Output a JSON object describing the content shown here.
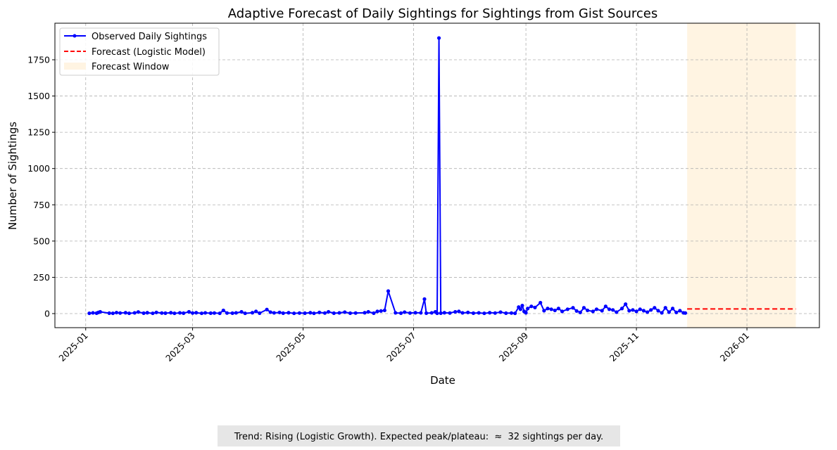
{
  "chart_data": {
    "type": "line",
    "title": "Adaptive Forecast of Daily Sightings for Sightings from Gist Sources",
    "xlabel": "Date",
    "ylabel": "Number of Sightings",
    "xlim": [
      "2024-12-15",
      "2026-02-10"
    ],
    "ylim": [
      -97,
      2002
    ],
    "xticks": [
      "2025-01",
      "2025-03",
      "2025-05",
      "2025-07",
      "2025-09",
      "2025-11",
      "2026-01"
    ],
    "yticks": [
      0,
      250,
      500,
      750,
      1000,
      1250,
      1500,
      1750
    ],
    "grid": true,
    "legend_position": "top-left",
    "legend": [
      "Observed Daily Sightings",
      "Forecast (Logistic Model)",
      "Forecast Window"
    ],
    "colors": {
      "observed": "#0000ff",
      "forecast": "#ff0000",
      "window": "#fff4e2"
    },
    "forecast_window": [
      "2025-11-29",
      "2026-01-28"
    ],
    "forecast": {
      "start": "2025-11-29",
      "end": "2026-01-28",
      "value": 32
    },
    "observed": [
      [
        "2025-01-03",
        2
      ],
      [
        "2025-01-05",
        5
      ],
      [
        "2025-01-07",
        3
      ],
      [
        "2025-01-08",
        8
      ],
      [
        "2025-01-09",
        12
      ],
      [
        "2025-01-14",
        3
      ],
      [
        "2025-01-16",
        2
      ],
      [
        "2025-01-18",
        7
      ],
      [
        "2025-01-20",
        4
      ],
      [
        "2025-01-23",
        6
      ],
      [
        "2025-01-25",
        2
      ],
      [
        "2025-01-28",
        5
      ],
      [
        "2025-01-30",
        11
      ],
      [
        "2025-02-02",
        3
      ],
      [
        "2025-02-04",
        6
      ],
      [
        "2025-02-07",
        2
      ],
      [
        "2025-02-09",
        8
      ],
      [
        "2025-02-12",
        4
      ],
      [
        "2025-02-14",
        3
      ],
      [
        "2025-02-17",
        6
      ],
      [
        "2025-02-19",
        2
      ],
      [
        "2025-02-22",
        5
      ],
      [
        "2025-02-24",
        3
      ],
      [
        "2025-02-27",
        12
      ],
      [
        "2025-03-01",
        4
      ],
      [
        "2025-03-03",
        6
      ],
      [
        "2025-03-06",
        2
      ],
      [
        "2025-03-08",
        5
      ],
      [
        "2025-03-11",
        3
      ],
      [
        "2025-03-13",
        4
      ],
      [
        "2025-03-16",
        2
      ],
      [
        "2025-03-18",
        22
      ],
      [
        "2025-03-20",
        4
      ],
      [
        "2025-03-23",
        3
      ],
      [
        "2025-03-25",
        5
      ],
      [
        "2025-03-28",
        12
      ],
      [
        "2025-03-30",
        2
      ],
      [
        "2025-04-03",
        6
      ],
      [
        "2025-04-05",
        15
      ],
      [
        "2025-04-07",
        3
      ],
      [
        "2025-04-11",
        28
      ],
      [
        "2025-04-13",
        10
      ],
      [
        "2025-04-15",
        5
      ],
      [
        "2025-04-18",
        8
      ],
      [
        "2025-04-20",
        3
      ],
      [
        "2025-04-23",
        6
      ],
      [
        "2025-04-26",
        2
      ],
      [
        "2025-04-29",
        4
      ],
      [
        "2025-05-02",
        3
      ],
      [
        "2025-05-05",
        6
      ],
      [
        "2025-05-07",
        2
      ],
      [
        "2025-05-10",
        8
      ],
      [
        "2025-05-13",
        4
      ],
      [
        "2025-05-15",
        12
      ],
      [
        "2025-05-18",
        3
      ],
      [
        "2025-05-21",
        5
      ],
      [
        "2025-05-24",
        10
      ],
      [
        "2025-05-27",
        3
      ],
      [
        "2025-05-30",
        4
      ],
      [
        "2025-06-04",
        6
      ],
      [
        "2025-06-06",
        12
      ],
      [
        "2025-06-09",
        3
      ],
      [
        "2025-06-11",
        15
      ],
      [
        "2025-06-13",
        18
      ],
      [
        "2025-06-15",
        22
      ],
      [
        "2025-06-17",
        155
      ],
      [
        "2025-06-21",
        5
      ],
      [
        "2025-06-24",
        3
      ],
      [
        "2025-06-26",
        10
      ],
      [
        "2025-06-29",
        4
      ],
      [
        "2025-07-02",
        6
      ],
      [
        "2025-07-05",
        5
      ],
      [
        "2025-07-07",
        100
      ],
      [
        "2025-07-08",
        3
      ],
      [
        "2025-07-11",
        5
      ],
      [
        "2025-07-13",
        12
      ],
      [
        "2025-07-14",
        2
      ],
      [
        "2025-07-15",
        1900
      ],
      [
        "2025-07-16",
        3
      ],
      [
        "2025-07-18",
        6
      ],
      [
        "2025-07-21",
        4
      ],
      [
        "2025-07-24",
        12
      ],
      [
        "2025-07-26",
        15
      ],
      [
        "2025-07-28",
        5
      ],
      [
        "2025-07-31",
        8
      ],
      [
        "2025-08-03",
        3
      ],
      [
        "2025-08-06",
        5
      ],
      [
        "2025-08-09",
        2
      ],
      [
        "2025-08-12",
        6
      ],
      [
        "2025-08-15",
        4
      ],
      [
        "2025-08-18",
        10
      ],
      [
        "2025-08-21",
        3
      ],
      [
        "2025-08-24",
        4
      ],
      [
        "2025-08-26",
        2
      ],
      [
        "2025-08-28",
        45
      ],
      [
        "2025-08-29",
        30
      ],
      [
        "2025-08-30",
        55
      ],
      [
        "2025-08-31",
        15
      ],
      [
        "2025-09-01",
        5
      ],
      [
        "2025-09-02",
        35
      ],
      [
        "2025-09-04",
        50
      ],
      [
        "2025-09-06",
        42
      ],
      [
        "2025-09-09",
        75
      ],
      [
        "2025-09-11",
        20
      ],
      [
        "2025-09-13",
        35
      ],
      [
        "2025-09-15",
        30
      ],
      [
        "2025-09-17",
        22
      ],
      [
        "2025-09-19",
        35
      ],
      [
        "2025-09-21",
        15
      ],
      [
        "2025-09-24",
        30
      ],
      [
        "2025-09-27",
        40
      ],
      [
        "2025-09-29",
        18
      ],
      [
        "2025-10-01",
        8
      ],
      [
        "2025-10-03",
        40
      ],
      [
        "2025-10-05",
        22
      ],
      [
        "2025-10-08",
        15
      ],
      [
        "2025-10-10",
        30
      ],
      [
        "2025-10-13",
        20
      ],
      [
        "2025-10-15",
        50
      ],
      [
        "2025-10-17",
        30
      ],
      [
        "2025-10-19",
        25
      ],
      [
        "2025-10-21",
        10
      ],
      [
        "2025-10-24",
        35
      ],
      [
        "2025-10-26",
        65
      ],
      [
        "2025-10-28",
        20
      ],
      [
        "2025-10-30",
        25
      ],
      [
        "2025-11-01",
        15
      ],
      [
        "2025-11-03",
        30
      ],
      [
        "2025-11-05",
        20
      ],
      [
        "2025-11-07",
        10
      ],
      [
        "2025-11-09",
        25
      ],
      [
        "2025-11-11",
        40
      ],
      [
        "2025-11-13",
        20
      ],
      [
        "2025-11-15",
        5
      ],
      [
        "2025-11-17",
        40
      ],
      [
        "2025-11-19",
        10
      ],
      [
        "2025-11-21",
        35
      ],
      [
        "2025-11-23",
        8
      ],
      [
        "2025-11-25",
        20
      ],
      [
        "2025-11-27",
        5
      ],
      [
        "2025-11-28",
        4
      ]
    ]
  },
  "annotation": "Trend: Rising (Logistic Growth). Expected peak/plateau:  ≈  32 sightings per day."
}
